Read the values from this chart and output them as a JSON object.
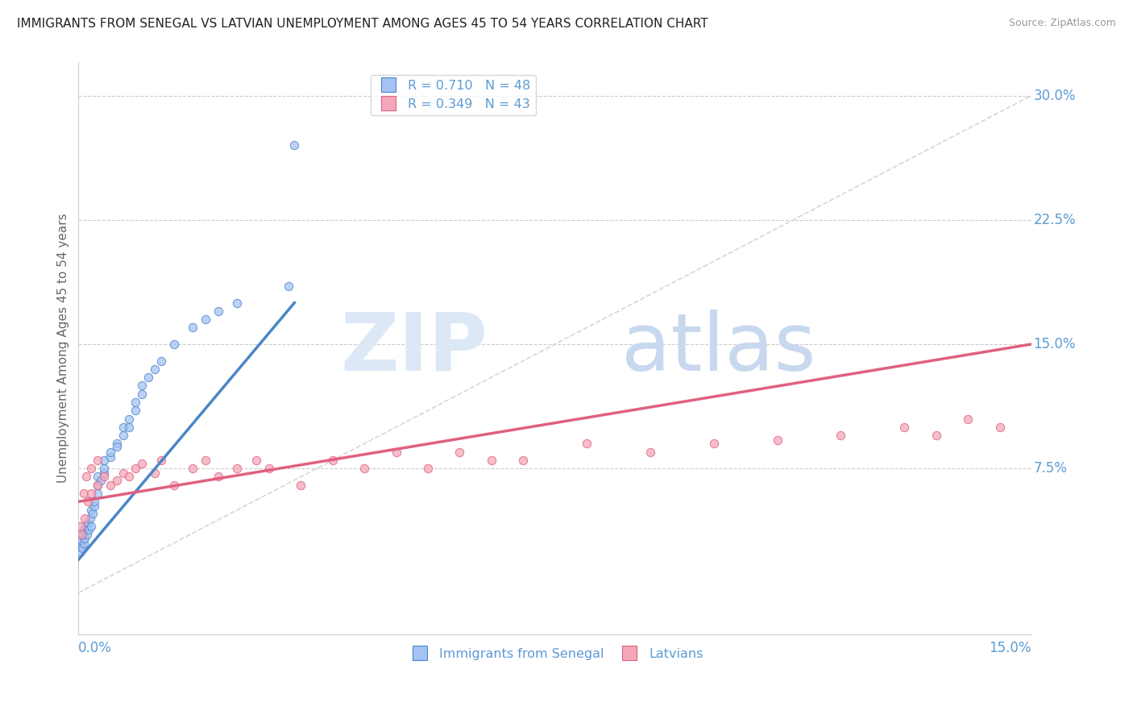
{
  "title": "IMMIGRANTS FROM SENEGAL VS LATVIAN UNEMPLOYMENT AMONG AGES 45 TO 54 YEARS CORRELATION CHART",
  "source": "Source: ZipAtlas.com",
  "ylabel": "Unemployment Among Ages 45 to 54 years",
  "series1_label": "Immigrants from Senegal",
  "series2_label": "Latvians",
  "legend_entry1": "R = 0.710   N = 48",
  "legend_entry2": "R = 0.349   N = 43",
  "color_blue": "#a4c2f4",
  "color_pink": "#f4a7b9",
  "color_trend_blue": "#4a86c8",
  "color_trend_pink": "#e06080",
  "color_refline": "#cccccc",
  "color_axis_label": "#5b9bd5",
  "color_title": "#222222",
  "color_source": "#999999",
  "color_ylabel": "#666666",
  "xmin": 0.0,
  "xmax": 0.15,
  "ymin": -0.025,
  "ymax": 0.32,
  "right_labels": [
    [
      0.075,
      "7.5%"
    ],
    [
      0.15,
      "15.0%"
    ],
    [
      0.225,
      "22.5%"
    ],
    [
      0.3,
      "30.0%"
    ]
  ],
  "blue_x": [
    0.0002,
    0.0003,
    0.0004,
    0.0005,
    0.0006,
    0.0007,
    0.0008,
    0.0009,
    0.001,
    0.0012,
    0.0013,
    0.0015,
    0.0016,
    0.0018,
    0.002,
    0.002,
    0.0022,
    0.0025,
    0.0025,
    0.003,
    0.003,
    0.003,
    0.0035,
    0.004,
    0.004,
    0.004,
    0.005,
    0.005,
    0.006,
    0.006,
    0.007,
    0.007,
    0.008,
    0.008,
    0.009,
    0.009,
    0.01,
    0.01,
    0.011,
    0.012,
    0.013,
    0.015,
    0.018,
    0.02,
    0.022,
    0.025,
    0.033,
    0.034
  ],
  "blue_y": [
    0.03,
    0.025,
    0.028,
    0.032,
    0.027,
    0.035,
    0.03,
    0.038,
    0.033,
    0.04,
    0.035,
    0.042,
    0.038,
    0.045,
    0.04,
    0.05,
    0.048,
    0.052,
    0.055,
    0.06,
    0.065,
    0.07,
    0.068,
    0.072,
    0.075,
    0.08,
    0.082,
    0.085,
    0.09,
    0.088,
    0.095,
    0.1,
    0.1,
    0.105,
    0.11,
    0.115,
    0.12,
    0.125,
    0.13,
    0.135,
    0.14,
    0.15,
    0.16,
    0.165,
    0.17,
    0.175,
    0.185,
    0.27
  ],
  "pink_x": [
    0.0003,
    0.0005,
    0.0008,
    0.001,
    0.0012,
    0.0015,
    0.002,
    0.002,
    0.003,
    0.003,
    0.004,
    0.005,
    0.006,
    0.007,
    0.008,
    0.009,
    0.01,
    0.012,
    0.013,
    0.015,
    0.018,
    0.02,
    0.022,
    0.025,
    0.028,
    0.03,
    0.035,
    0.04,
    0.045,
    0.05,
    0.055,
    0.06,
    0.065,
    0.07,
    0.08,
    0.09,
    0.1,
    0.11,
    0.12,
    0.13,
    0.135,
    0.14,
    0.145
  ],
  "pink_y": [
    0.04,
    0.035,
    0.06,
    0.045,
    0.07,
    0.055,
    0.06,
    0.075,
    0.065,
    0.08,
    0.07,
    0.065,
    0.068,
    0.072,
    0.07,
    0.075,
    0.078,
    0.072,
    0.08,
    0.065,
    0.075,
    0.08,
    0.07,
    0.075,
    0.08,
    0.075,
    0.065,
    0.08,
    0.075,
    0.085,
    0.075,
    0.085,
    0.08,
    0.08,
    0.09,
    0.085,
    0.09,
    0.092,
    0.095,
    0.1,
    0.095,
    0.105,
    0.1
  ],
  "blue_trend_x0": 0.0,
  "blue_trend_y0": 0.02,
  "blue_trend_x1": 0.034,
  "blue_trend_y1": 0.175,
  "pink_trend_x0": 0.0,
  "pink_trend_y0": 0.055,
  "pink_trend_x1": 0.15,
  "pink_trend_y1": 0.15,
  "ref_line_x0": 0.0,
  "ref_line_y0": 0.0,
  "ref_line_x1": 0.15,
  "ref_line_y1": 0.3
}
